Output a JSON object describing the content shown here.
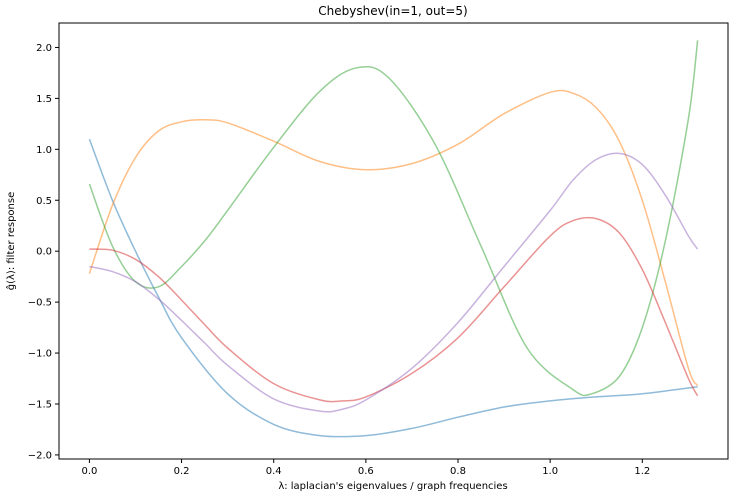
{
  "chart_data": {
    "type": "line",
    "title": "Chebyshev(in=1, out=5)",
    "xlabel": "λ: laplacian's eigenvalues / graph frequencies",
    "ylabel": "ĝ(λ): filter response",
    "xlim": [
      -0.066,
      1.386
    ],
    "ylim": [
      -2.04,
      2.24
    ],
    "xticks": [
      0.0,
      0.2,
      0.4,
      0.6,
      0.8,
      1.0,
      1.2
    ],
    "xtick_labels": [
      "0.0",
      "0.2",
      "0.4",
      "0.6",
      "0.8",
      "1.0",
      "1.2"
    ],
    "yticks": [
      -2.0,
      -1.5,
      -1.0,
      -0.5,
      0.0,
      0.5,
      1.0,
      1.5,
      2.0
    ],
    "ytick_labels": [
      "−2.0",
      "−1.5",
      "−1.0",
      "−0.5",
      "0.0",
      "0.5",
      "1.0",
      "1.5",
      "2.0"
    ],
    "grid": false,
    "legend": "none",
    "series": [
      {
        "color": "#1f77b4",
        "x": [
          0.0,
          0.05,
          0.1,
          0.15,
          0.2,
          0.3,
          0.4,
          0.5,
          0.6,
          0.7,
          0.8,
          0.9,
          1.0,
          1.1,
          1.2,
          1.32
        ],
        "y": [
          1.1,
          0.5,
          0.0,
          -0.45,
          -0.85,
          -1.4,
          -1.7,
          -1.81,
          -1.81,
          -1.74,
          -1.63,
          -1.53,
          -1.47,
          -1.43,
          -1.4,
          -1.33
        ]
      },
      {
        "color": "#ff7f0e",
        "x": [
          0.0,
          0.05,
          0.1,
          0.15,
          0.2,
          0.25,
          0.3,
          0.4,
          0.5,
          0.6,
          0.7,
          0.8,
          0.9,
          1.0,
          1.05,
          1.1,
          1.15,
          1.2,
          1.25,
          1.3,
          1.32
        ],
        "y": [
          -0.22,
          0.45,
          0.92,
          1.18,
          1.27,
          1.29,
          1.26,
          1.08,
          0.88,
          0.8,
          0.86,
          1.05,
          1.35,
          1.56,
          1.55,
          1.41,
          1.08,
          0.5,
          -0.3,
          -1.15,
          -1.32
        ]
      },
      {
        "color": "#2ca02c",
        "x": [
          0.0,
          0.05,
          0.1,
          0.15,
          0.2,
          0.25,
          0.3,
          0.4,
          0.5,
          0.58,
          0.65,
          0.75,
          0.85,
          0.95,
          1.05,
          1.09,
          1.15,
          1.2,
          1.25,
          1.3,
          1.32
        ],
        "y": [
          0.66,
          0.05,
          -0.3,
          -0.35,
          -0.15,
          0.1,
          0.4,
          1.02,
          1.57,
          1.8,
          1.7,
          1.05,
          0.05,
          -0.95,
          -1.36,
          -1.4,
          -1.23,
          -0.75,
          0.1,
          1.3,
          2.07
        ]
      },
      {
        "color": "#d62728",
        "x": [
          0.0,
          0.05,
          0.1,
          0.15,
          0.2,
          0.25,
          0.3,
          0.4,
          0.5,
          0.55,
          0.6,
          0.7,
          0.8,
          0.9,
          1.0,
          1.05,
          1.1,
          1.15,
          1.2,
          1.25,
          1.3,
          1.32
        ],
        "y": [
          0.02,
          0.01,
          -0.08,
          -0.25,
          -0.48,
          -0.72,
          -0.95,
          -1.3,
          -1.46,
          -1.47,
          -1.43,
          -1.2,
          -0.85,
          -0.35,
          0.15,
          0.3,
          0.32,
          0.18,
          -0.18,
          -0.7,
          -1.25,
          -1.42
        ]
      },
      {
        "color": "#9467bd",
        "x": [
          0.0,
          0.05,
          0.1,
          0.15,
          0.2,
          0.25,
          0.3,
          0.4,
          0.5,
          0.55,
          0.6,
          0.7,
          0.8,
          0.9,
          1.0,
          1.05,
          1.1,
          1.15,
          1.2,
          1.25,
          1.3,
          1.32
        ],
        "y": [
          -0.15,
          -0.2,
          -0.3,
          -0.47,
          -0.68,
          -0.9,
          -1.12,
          -1.45,
          -1.57,
          -1.55,
          -1.46,
          -1.15,
          -0.7,
          -0.15,
          0.4,
          0.7,
          0.9,
          0.96,
          0.85,
          0.55,
          0.15,
          0.02
        ]
      }
    ]
  }
}
